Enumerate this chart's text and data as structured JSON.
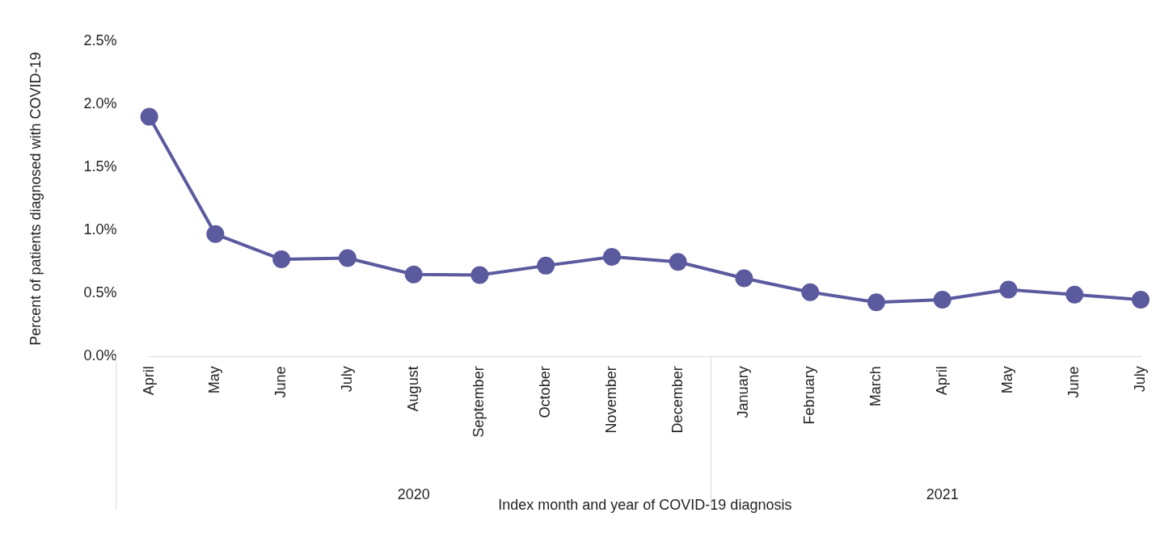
{
  "chart_data": {
    "type": "line",
    "xlabel": "Index month and year of COVID-19 diagnosis",
    "ylabel": "Percent of patients diagnosed with COVID-19",
    "categories": [
      "April",
      "May",
      "June",
      "July",
      "August",
      "September",
      "October",
      "November",
      "December",
      "January",
      "February",
      "March",
      "April",
      "May",
      "June",
      "July"
    ],
    "series": [
      {
        "color": "#5b5a9e",
        "values": [
          1.9,
          0.97,
          0.77,
          0.78,
          0.65,
          0.645,
          0.72,
          0.79,
          0.75,
          0.62,
          0.51,
          0.43,
          0.45,
          0.53,
          0.49,
          0.45
        ]
      }
    ],
    "ylim": [
      0,
      2.5
    ],
    "yticks": [
      {
        "value": 0,
        "label": "0.0%"
      },
      {
        "value": 0.5,
        "label": "0.5%"
      },
      {
        "value": 1,
        "label": "1.0%"
      },
      {
        "value": 1.5,
        "label": "1.5%"
      },
      {
        "value": 2,
        "label": "2.0%"
      },
      {
        "value": 2.5,
        "label": "2.5%"
      }
    ],
    "annotations": [
      "2020",
      "2021"
    ],
    "grid": false,
    "legend": false,
    "marker": "circle",
    "line_style": "solid"
  }
}
